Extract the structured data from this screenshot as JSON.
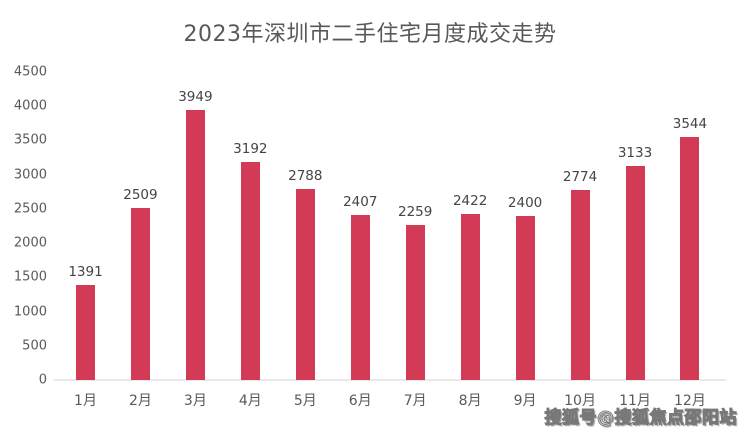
{
  "chart_data": {
    "type": "bar",
    "title": "2023年深圳市二手住宅月度成交走势",
    "categories": [
      "1月",
      "2月",
      "3月",
      "4月",
      "5月",
      "6月",
      "7月",
      "8月",
      "9月",
      "10月",
      "11月",
      "12月"
    ],
    "values": [
      1391,
      2509,
      3949,
      3192,
      2788,
      2407,
      2259,
      2422,
      2400,
      2774,
      3133,
      3544
    ],
    "xlabel": "",
    "ylabel": "",
    "ylim": [
      0,
      4500
    ],
    "yticks": [
      0,
      500,
      1000,
      1500,
      2000,
      2500,
      3000,
      3500,
      4000,
      4500
    ],
    "grid": false,
    "legend_position": "none",
    "value_labels_shown": true,
    "colors": {
      "bar": "#d23a55",
      "axis_line": "#e9e9e9",
      "tick_label": "#595959",
      "value_label": "#454545",
      "title": "#595959",
      "watermark_fill": "#fcfcfc",
      "watermark_outline": "#787878",
      "background": "#ffffff"
    }
  },
  "watermark": {
    "text": "搜狐号@搜狐焦点邵阳站"
  }
}
